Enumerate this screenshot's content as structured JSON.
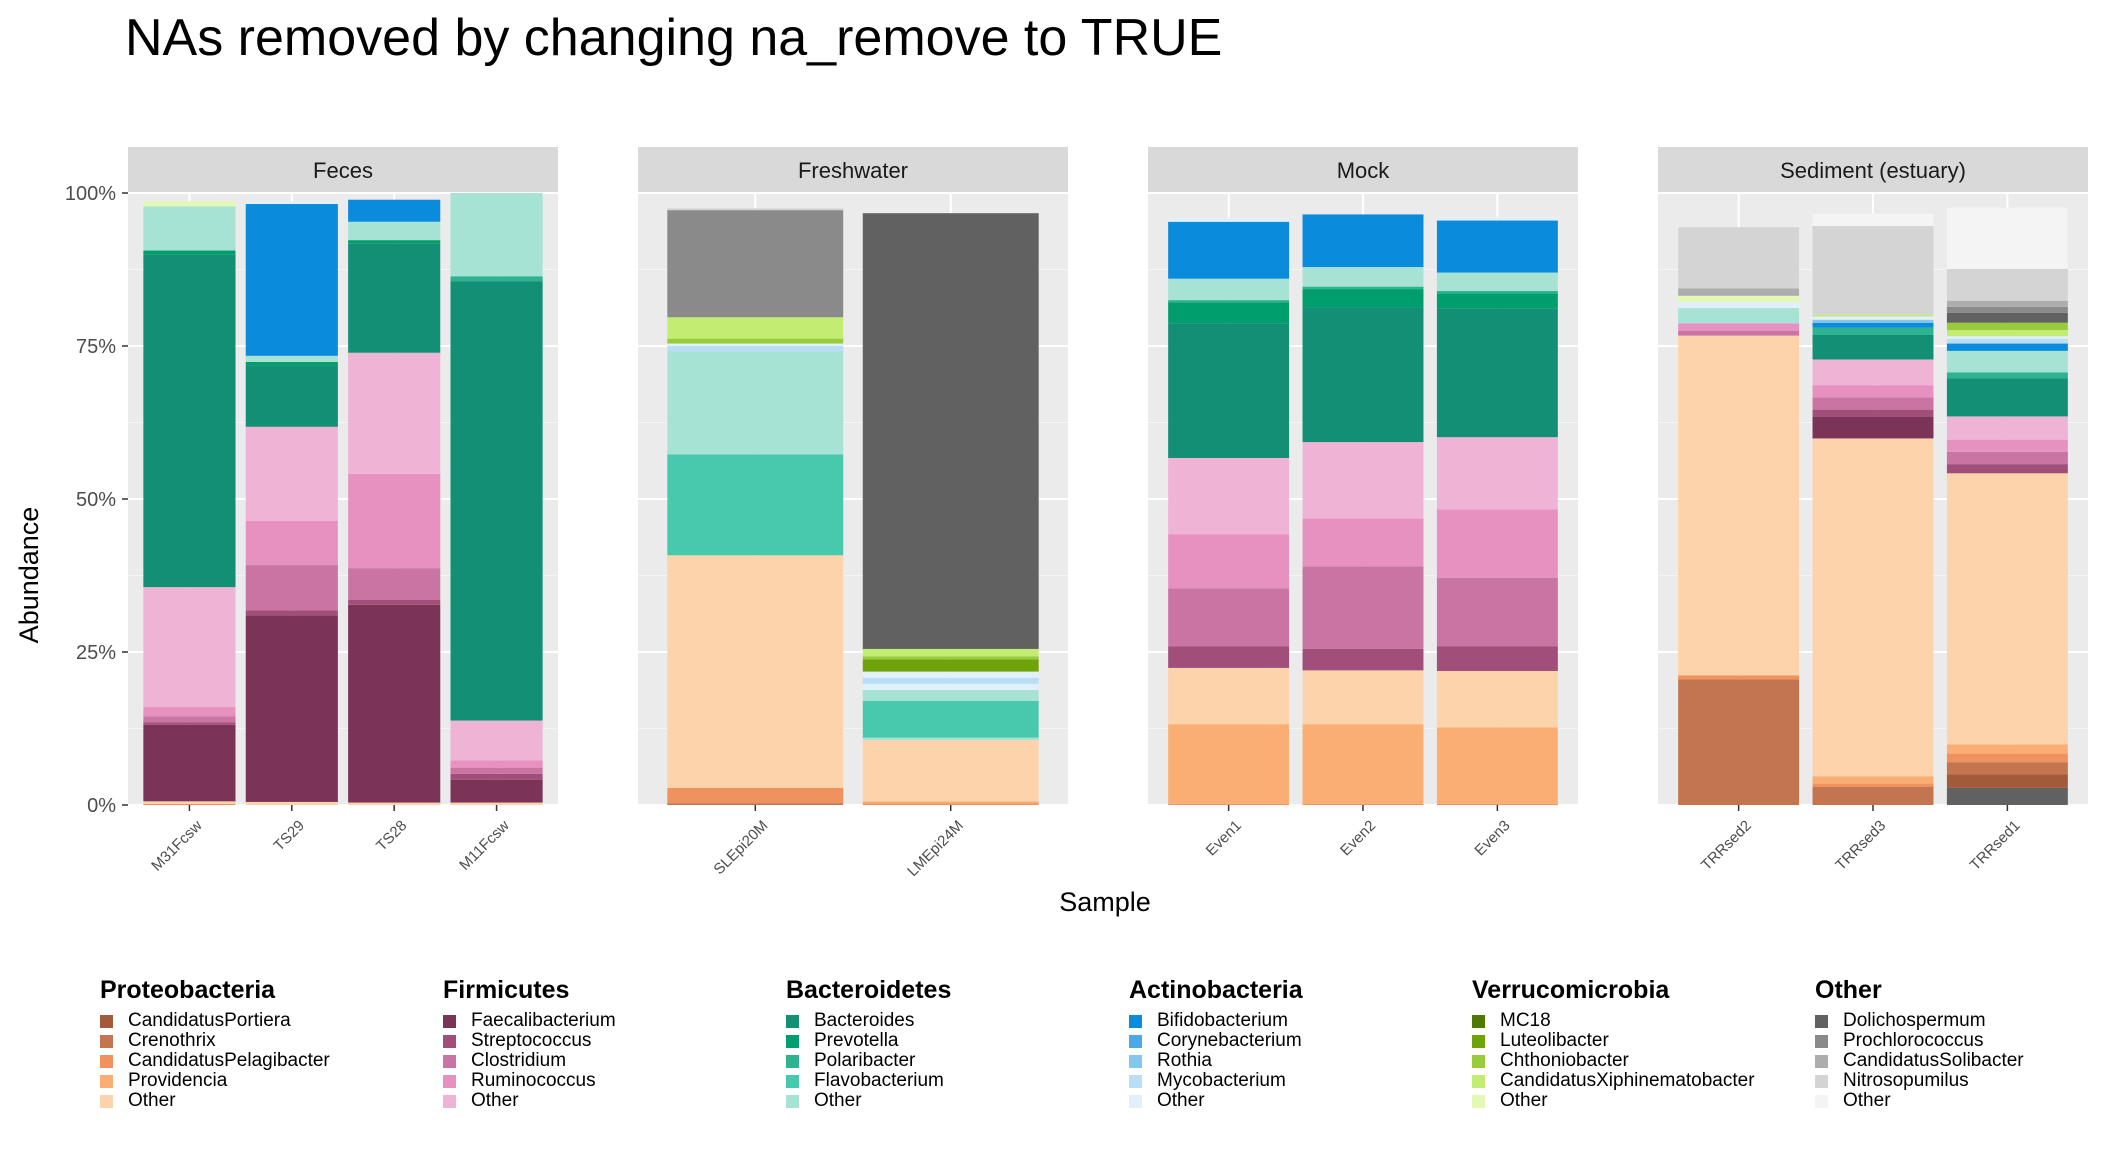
{
  "chart_data": {
    "type": "bar",
    "stacked": true,
    "title": "NAs removed by changing na_remove to TRUE",
    "xlabel": "Sample",
    "ylabel": "Abundance",
    "ylim": [
      0,
      1
    ],
    "y_ticks": [
      {
        "value": 0,
        "label": "0%"
      },
      {
        "value": 0.25,
        "label": "25%"
      },
      {
        "value": 0.5,
        "label": "50%"
      },
      {
        "value": 0.75,
        "label": "75%"
      },
      {
        "value": 1,
        "label": "100%"
      }
    ],
    "grid": true,
    "legend_position": "bottom",
    "taxa": [
      {
        "id": "P1",
        "label": "CandidatusPortiera",
        "color": "#a35a3a"
      },
      {
        "id": "P2",
        "label": "Crenothrix",
        "color": "#c2754f"
      },
      {
        "id": "P3",
        "label": "CandidatusPelagibacter",
        "color": "#f0925d"
      },
      {
        "id": "P4",
        "label": "Providencia",
        "color": "#fbae73"
      },
      {
        "id": "P5",
        "label": "Other",
        "color": "#fdd3ab"
      },
      {
        "id": "F1",
        "label": "Faecalibacterium",
        "color": "#7b3358"
      },
      {
        "id": "F2",
        "label": "Streptococcus",
        "color": "#a24e7b"
      },
      {
        "id": "F3",
        "label": "Clostridium",
        "color": "#c974a2"
      },
      {
        "id": "F4",
        "label": "Ruminococcus",
        "color": "#e691bf"
      },
      {
        "id": "F5",
        "label": "Other",
        "color": "#efb4d5"
      },
      {
        "id": "B1",
        "label": "Bacteroides",
        "color": "#138f76"
      },
      {
        "id": "B2",
        "label": "Prevotella",
        "color": "#009e6d"
      },
      {
        "id": "B3",
        "label": "Polaribacter",
        "color": "#2db390"
      },
      {
        "id": "B4",
        "label": "Flavobacterium",
        "color": "#48c9ad"
      },
      {
        "id": "B5",
        "label": "Other",
        "color": "#a6e3d5"
      },
      {
        "id": "A1",
        "label": "Bifidobacterium",
        "color": "#0b8bdc"
      },
      {
        "id": "A2",
        "label": "Corynebacterium",
        "color": "#4ca9e8"
      },
      {
        "id": "A3",
        "label": "Rothia",
        "color": "#83c6f0"
      },
      {
        "id": "A4",
        "label": "Mycobacterium",
        "color": "#b9dff7"
      },
      {
        "id": "A5",
        "label": "Other",
        "color": "#e2f0fb"
      },
      {
        "id": "V1",
        "label": "MC18",
        "color": "#4e7a02"
      },
      {
        "id": "V2",
        "label": "Luteolibacter",
        "color": "#6ea30a"
      },
      {
        "id": "V3",
        "label": "Chthoniobacter",
        "color": "#99cc3a"
      },
      {
        "id": "V4",
        "label": "CandidatusXiphinematobacter",
        "color": "#c3ec73"
      },
      {
        "id": "V5",
        "label": "Other",
        "color": "#e3f8b4"
      },
      {
        "id": "O1",
        "label": "Dolichospermum",
        "color": "#616161"
      },
      {
        "id": "O2",
        "label": "Prochlorococcus",
        "color": "#8a8a8a"
      },
      {
        "id": "O3",
        "label": "CandidatusSolibacter",
        "color": "#adadad"
      },
      {
        "id": "O4",
        "label": "Nitrosopumilus",
        "color": "#d4d4d4"
      },
      {
        "id": "O5",
        "label": "Other",
        "color": "#f4f4f4"
      }
    ],
    "legend_groups": [
      {
        "title": "Proteobacteria",
        "items": [
          "P1",
          "P2",
          "P3",
          "P4",
          "P5"
        ]
      },
      {
        "title": "Firmicutes",
        "items": [
          "F1",
          "F2",
          "F3",
          "F4",
          "F5"
        ]
      },
      {
        "title": "Bacteroidetes",
        "items": [
          "B1",
          "B2",
          "B3",
          "B4",
          "B5"
        ]
      },
      {
        "title": "Actinobacteria",
        "items": [
          "A1",
          "A2",
          "A3",
          "A4",
          "A5"
        ]
      },
      {
        "title": "Verrucomicrobia",
        "items": [
          "V1",
          "V2",
          "V3",
          "V4",
          "V5"
        ]
      },
      {
        "title": "Other",
        "items": [
          "O1",
          "O2",
          "O3",
          "O4",
          "O5"
        ]
      }
    ],
    "facets": [
      {
        "label": "Feces",
        "samples": [
          {
            "name": "M31Fcsw",
            "segments": [
              [
                "P3",
                0.002
              ],
              [
                "P5",
                0.004
              ],
              [
                "F1",
                0.125
              ],
              [
                "F2",
                0.004
              ],
              [
                "F3",
                0.01
              ],
              [
                "F4",
                0.015
              ],
              [
                "F5",
                0.196
              ],
              [
                "B1",
                0.544
              ],
              [
                "B2",
                0.006
              ],
              [
                "B5",
                0.072
              ],
              [
                "V5",
                0.008
              ]
            ]
          },
          {
            "name": "TS29",
            "segments": [
              [
                "P5",
                0.005
              ],
              [
                "F1",
                0.305
              ],
              [
                "F2",
                0.008
              ],
              [
                "F3",
                0.074
              ],
              [
                "F4",
                0.072
              ],
              [
                "F5",
                0.154
              ],
              [
                "B1",
                0.1
              ],
              [
                "B2",
                0.006
              ],
              [
                "B5",
                0.01
              ],
              [
                "A1",
                0.248
              ],
              [
                "A5",
                0.004
              ]
            ]
          },
          {
            "name": "TS28",
            "segments": [
              [
                "P5",
                0.004
              ],
              [
                "F1",
                0.323
              ],
              [
                "F2",
                0.008
              ],
              [
                "F3",
                0.052
              ],
              [
                "F4",
                0.154
              ],
              [
                "F5",
                0.198
              ],
              [
                "B1",
                0.178
              ],
              [
                "B2",
                0.006
              ],
              [
                "B5",
                0.03
              ],
              [
                "A1",
                0.036
              ]
            ]
          },
          {
            "name": "M11Fcsw",
            "segments": [
              [
                "P5",
                0.004
              ],
              [
                "F1",
                0.037
              ],
              [
                "F2",
                0.01
              ],
              [
                "F3",
                0.01
              ],
              [
                "F4",
                0.012
              ],
              [
                "F5",
                0.065
              ],
              [
                "B1",
                0.718
              ],
              [
                "B3",
                0.008
              ],
              [
                "B5",
                0.136
              ]
            ]
          }
        ]
      },
      {
        "label": "Freshwater",
        "samples": [
          {
            "name": "SLEpi20M",
            "segments": [
              [
                "P2",
                0.003
              ],
              [
                "P3",
                0.025
              ],
              [
                "P5",
                0.38
              ],
              [
                "B4",
                0.165
              ],
              [
                "B5",
                0.168
              ],
              [
                "A4",
                0.009
              ],
              [
                "A5",
                0.004
              ],
              [
                "V3",
                0.008
              ],
              [
                "V4",
                0.035
              ],
              [
                "O2",
                0.175
              ],
              [
                "O4",
                0.003
              ]
            ]
          },
          {
            "name": "LMEpi24M",
            "segments": [
              [
                "P3",
                0.003
              ],
              [
                "P4",
                0.003
              ],
              [
                "P5",
                0.1
              ],
              [
                "B5",
                0.004
              ],
              [
                "B4",
                0.06
              ],
              [
                "B5",
                0.018
              ],
              [
                "A5",
                0.01
              ],
              [
                "A4",
                0.01
              ],
              [
                "A5",
                0.01
              ],
              [
                "V2",
                0.02
              ],
              [
                "V3",
                0.005
              ],
              [
                "V4",
                0.012
              ],
              [
                "O1",
                0.712
              ]
            ]
          }
        ]
      },
      {
        "label": "Mock",
        "samples": [
          {
            "name": "Even1",
            "segments": [
              [
                "P3",
                0.002
              ],
              [
                "P4",
                0.13
              ],
              [
                "P5",
                0.092
              ],
              [
                "F2",
                0.035
              ],
              [
                "F3",
                0.095
              ],
              [
                "F4",
                0.088
              ],
              [
                "F5",
                0.125
              ],
              [
                "B1",
                0.22
              ],
              [
                "B2",
                0.034
              ],
              [
                "B3",
                0.004
              ],
              [
                "B5",
                0.035
              ],
              [
                "A1",
                0.093
              ],
              [
                "A5",
                0.006
              ]
            ]
          },
          {
            "name": "Even2",
            "segments": [
              [
                "P3",
                0.002
              ],
              [
                "P4",
                0.13
              ],
              [
                "P5",
                0.088
              ],
              [
                "F2",
                0.035
              ],
              [
                "F3",
                0.135
              ],
              [
                "F4",
                0.078
              ],
              [
                "F5",
                0.125
              ],
              [
                "B1",
                0.22
              ],
              [
                "B2",
                0.03
              ],
              [
                "B3",
                0.004
              ],
              [
                "B5",
                0.032
              ],
              [
                "A1",
                0.086
              ]
            ]
          },
          {
            "name": "Even3",
            "segments": [
              [
                "P3",
                0.002
              ],
              [
                "P4",
                0.125
              ],
              [
                "P5",
                0.092
              ],
              [
                "F2",
                0.04
              ],
              [
                "F3",
                0.112
              ],
              [
                "F4",
                0.112
              ],
              [
                "F5",
                0.118
              ],
              [
                "B1",
                0.21
              ],
              [
                "B2",
                0.025
              ],
              [
                "B3",
                0.004
              ],
              [
                "B5",
                0.03
              ],
              [
                "A1",
                0.085
              ],
              [
                "A5",
                0.006
              ]
            ]
          }
        ]
      },
      {
        "label": "Sediment (estuary)",
        "samples": [
          {
            "name": "TRRsed2",
            "segments": [
              [
                "P2",
                0.205
              ],
              [
                "P3",
                0.007
              ],
              [
                "P5",
                0.555
              ],
              [
                "F3",
                0.008
              ],
              [
                "F4",
                0.012
              ],
              [
                "B5",
                0.025
              ],
              [
                "A5",
                0.01
              ],
              [
                "V5",
                0.01
              ],
              [
                "O3",
                0.012
              ],
              [
                "O4",
                0.1
              ]
            ]
          },
          {
            "name": "TRRsed3",
            "segments": [
              [
                "P2",
                0.03
              ],
              [
                "P3",
                0.005
              ],
              [
                "P4",
                0.012
              ],
              [
                "P5",
                0.552
              ],
              [
                "F1",
                0.035
              ],
              [
                "F2",
                0.012
              ],
              [
                "F3",
                0.02
              ],
              [
                "F4",
                0.02
              ],
              [
                "F5",
                0.042
              ],
              [
                "B1",
                0.04
              ],
              [
                "B3",
                0.012
              ],
              [
                "A1",
                0.008
              ],
              [
                "A3",
                0.005
              ],
              [
                "A5",
                0.005
              ],
              [
                "V4",
                0.003
              ],
              [
                "O4",
                0.145
              ],
              [
                "O5",
                0.02
              ]
            ]
          },
          {
            "name": "TRRsed1",
            "segments": [
              [
                "O1",
                0.028
              ],
              [
                "P1",
                0.022
              ],
              [
                "P2",
                0.02
              ],
              [
                "P3",
                0.014
              ],
              [
                "P4",
                0.015
              ],
              [
                "P5",
                0.443
              ],
              [
                "F2",
                0.015
              ],
              [
                "F3",
                0.02
              ],
              [
                "F4",
                0.02
              ],
              [
                "F5",
                0.038
              ],
              [
                "B1",
                0.062
              ],
              [
                "B3",
                0.01
              ],
              [
                "B5",
                0.035
              ],
              [
                "A1",
                0.012
              ],
              [
                "A4",
                0.008
              ],
              [
                "A5",
                0.004
              ],
              [
                "V4",
                0.01
              ],
              [
                "V3",
                0.012
              ],
              [
                "O1",
                0.016
              ],
              [
                "O2",
                0.01
              ],
              [
                "O3",
                0.01
              ],
              [
                "O4",
                0.052
              ],
              [
                "O5",
                0.1
              ]
            ]
          }
        ]
      }
    ]
  }
}
